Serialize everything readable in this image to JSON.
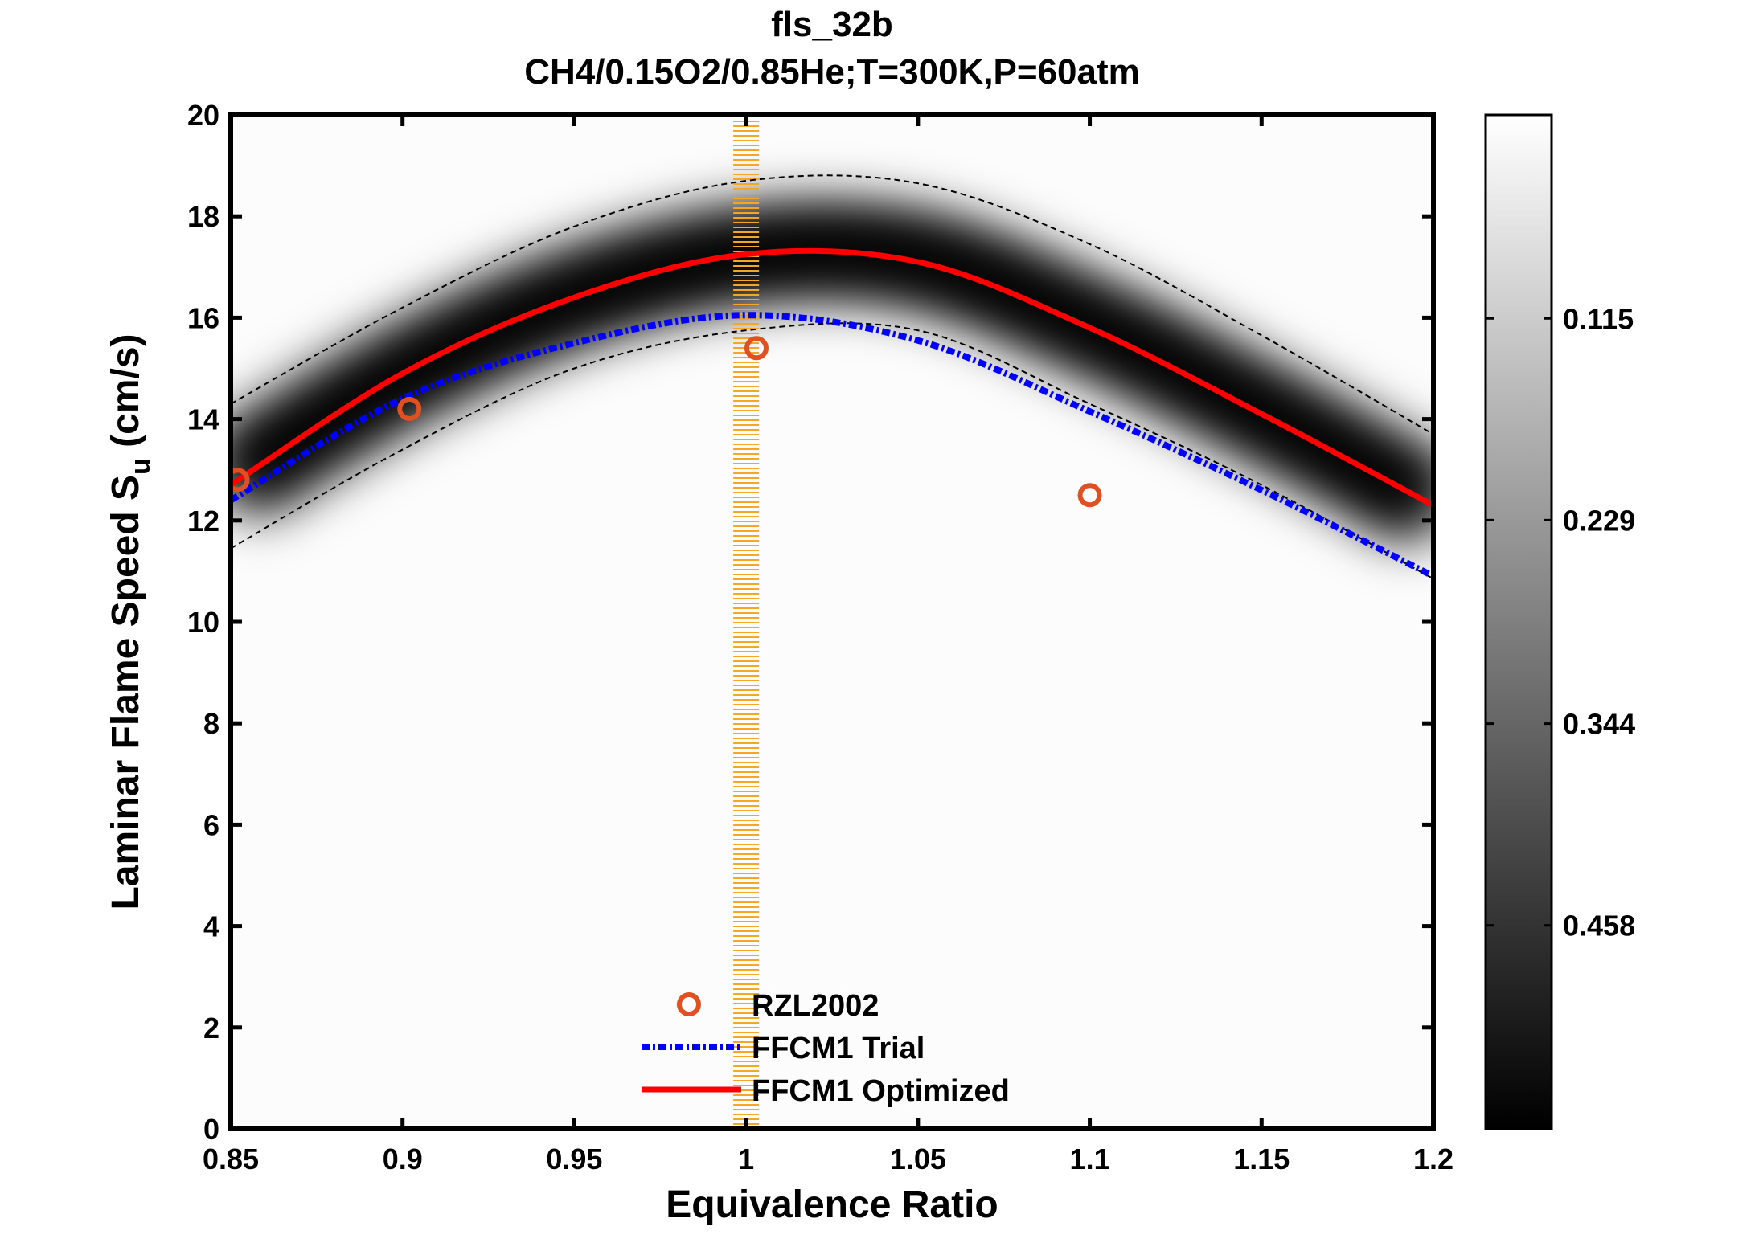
{
  "chart_data": {
    "type": "line",
    "title": "fls_32b",
    "subtitle": "CH4/0.15O2/0.85He;T=300K,P=60atm",
    "xlabel": "Equivalence Ratio",
    "ylabel_main": "Laminar Flame Speed S",
    "ylabel_sub": "u",
    "ylabel_units": " (cm/s)",
    "xlim": [
      0.85,
      1.2
    ],
    "ylim": [
      0,
      20
    ],
    "xticks": [
      "0.85",
      "0.9",
      "0.95",
      "1",
      "1.05",
      "1.1",
      "1.15",
      "1.2"
    ],
    "yticks": [
      "0",
      "2",
      "4",
      "6",
      "8",
      "10",
      "12",
      "14",
      "16",
      "18",
      "20"
    ],
    "grid": false,
    "legend_placement": "bottom-center",
    "x": [
      0.85,
      0.9,
      0.95,
      1.0,
      1.05,
      1.1,
      1.15,
      1.2
    ],
    "series": [
      {
        "name": "RZL2002",
        "type": "scatter",
        "color": "#e05020",
        "points": [
          [
            0.852,
            12.8
          ],
          [
            0.902,
            14.2
          ],
          [
            1.003,
            15.4
          ],
          [
            1.1,
            12.5
          ]
        ]
      },
      {
        "name": "FFCM1 Trial",
        "type": "line",
        "style": "dash-dot",
        "color": "#0000ff",
        "values": [
          12.4,
          14.4,
          15.5,
          16.05,
          15.55,
          14.15,
          12.6,
          10.9
        ]
      },
      {
        "name": "FFCM1 Optimized",
        "type": "line",
        "style": "solid",
        "color": "#ff0000",
        "values": [
          12.7,
          14.9,
          16.4,
          17.25,
          17.1,
          15.8,
          14.1,
          12.3
        ]
      }
    ],
    "uncertainty_bounds": {
      "color": "#000000",
      "style": "dashed",
      "upper": [
        14.3,
        16.2,
        17.8,
        18.7,
        18.65,
        17.45,
        15.65,
        13.7
      ],
      "lower": [
        11.45,
        13.4,
        15.0,
        15.75,
        15.75,
        14.3,
        12.7,
        10.85
      ]
    },
    "vertical_band": {
      "x": 1.0,
      "color": "#f5a623"
    },
    "colorbar": {
      "colormap": "gray-reversed",
      "range": [
        0,
        0.573
      ],
      "ticks": [
        "0.115",
        "0.229",
        "0.344",
        "0.458"
      ]
    }
  }
}
